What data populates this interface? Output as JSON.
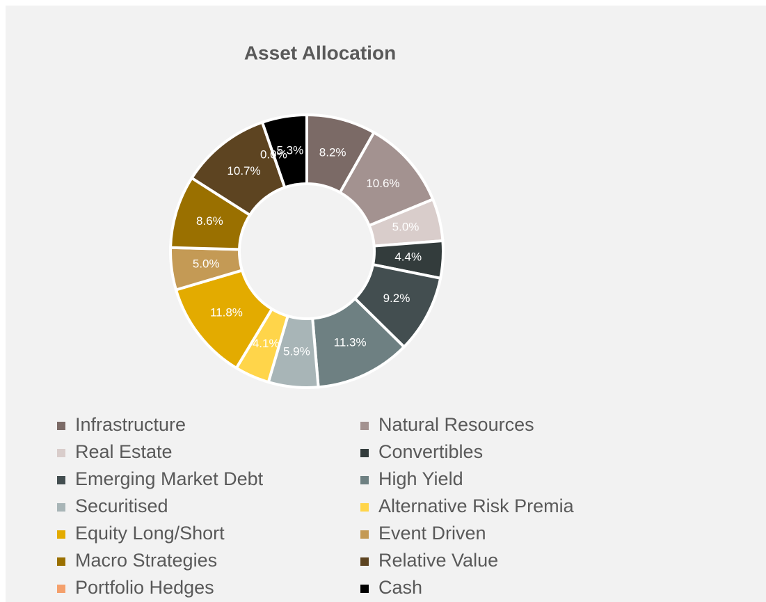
{
  "chart_data": {
    "type": "donut",
    "title": "Asset Allocation",
    "categories": [
      "Infrastructure",
      "Natural Resources",
      "Real Estate",
      "Convertibles",
      "Emerging Market Debt",
      "High Yield",
      "Securitised",
      "Alternative Risk Premia",
      "Equity Long/Short",
      "Event Driven",
      "Macro Strategies",
      "Relative Value",
      "Portfolio Hedges",
      "Cash"
    ],
    "values": [
      8.2,
      10.6,
      5.0,
      4.4,
      9.2,
      11.3,
      5.9,
      4.1,
      11.8,
      5.0,
      8.6,
      10.7,
      0.0,
      5.3
    ],
    "value_labels": [
      "8.2%",
      "10.6%",
      "5.0%",
      "4.4%",
      "9.2%",
      "11.3%",
      "5.9%",
      "4.1%",
      "11.8%",
      "5.0%",
      "8.6%",
      "10.7%",
      "0.0%",
      "5.3%"
    ],
    "colors": [
      "#7b6a66",
      "#a39290",
      "#d9cdcb",
      "#333c3c",
      "#434e50",
      "#6e8082",
      "#a8b5b7",
      "#ffd54a",
      "#e3ab00",
      "#c49a55",
      "#9a7000",
      "#5d4421",
      "#f4a06c",
      "#000000"
    ],
    "legend": "bottom"
  }
}
